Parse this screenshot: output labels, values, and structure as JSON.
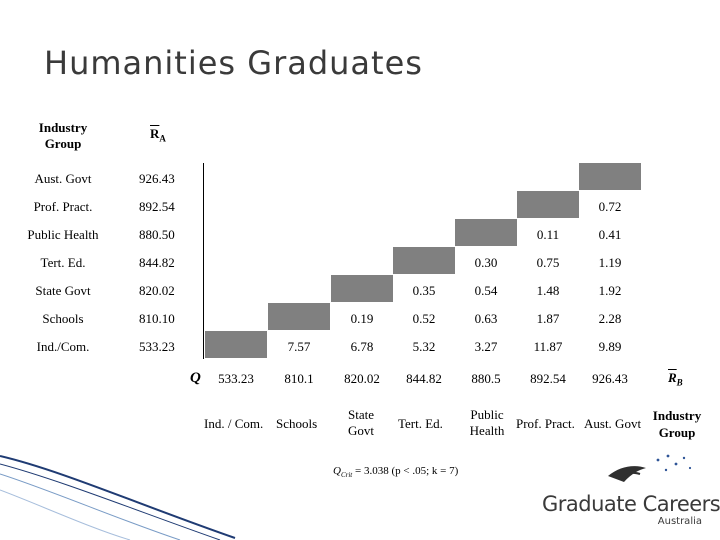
{
  "title": "Humanities Graduates",
  "headers": {
    "industry_group": "Industry Group",
    "ra_main": "R",
    "ra_sub": "A"
  },
  "rows": [
    {
      "name": "Aust. Govt",
      "ra": "926.43",
      "cells": [
        "",
        "",
        "",
        "",
        "",
        "",
        "",
        ""
      ]
    },
    {
      "name": "Prof. Pract.",
      "ra": "892.54",
      "cells": [
        "",
        "",
        "",
        "",
        "",
        "",
        "",
        "0.72"
      ]
    },
    {
      "name": "Public Health",
      "ra": "880.50",
      "cells": [
        "",
        "",
        "",
        "",
        "",
        "",
        "0.11",
        "0.41"
      ]
    },
    {
      "name": "Tert. Ed.",
      "ra": "844.82",
      "cells": [
        "",
        "",
        "",
        "",
        "",
        "0.30",
        "0.75",
        "1.19"
      ]
    },
    {
      "name": "State Govt",
      "ra": "820.02",
      "cells": [
        "",
        "",
        "",
        "",
        "0.35",
        "0.54",
        "1.48",
        "1.92"
      ]
    },
    {
      "name": "Schools",
      "ra": "810.10",
      "cells": [
        "",
        "",
        "",
        "0.19",
        "0.52",
        "0.63",
        "1.87",
        "2.28"
      ]
    },
    {
      "name": "Ind./Com.",
      "ra": "533.23",
      "cells": [
        "",
        "",
        "7.57",
        "6.78",
        "5.32",
        "3.27",
        "11.87",
        "9.89"
      ]
    }
  ],
  "q_label": "Q",
  "col_values": [
    "533.23",
    "810.1",
    "820.02",
    "844.82",
    "880.5",
    "892.54",
    "926.43"
  ],
  "rb": {
    "main": "R",
    "sub": "B"
  },
  "col_names": [
    "Ind. / Com.",
    "Schools",
    "State Govt",
    "Tert. Ed.",
    "Public Health",
    "Prof. Pract.",
    "Aust. Govt"
  ],
  "footer": {
    "industry_group": "Industry Group"
  },
  "qcrit": {
    "q": "Q",
    "sub": "Crit",
    "text": " = 3.038 (p < .05; k = 7)"
  },
  "logo": {
    "line1": "Graduate Careers",
    "line2": "Australia"
  },
  "colors": {
    "gray_block": "#808080",
    "title": "#3a3a3a",
    "logo_blue": "#2f5597"
  }
}
